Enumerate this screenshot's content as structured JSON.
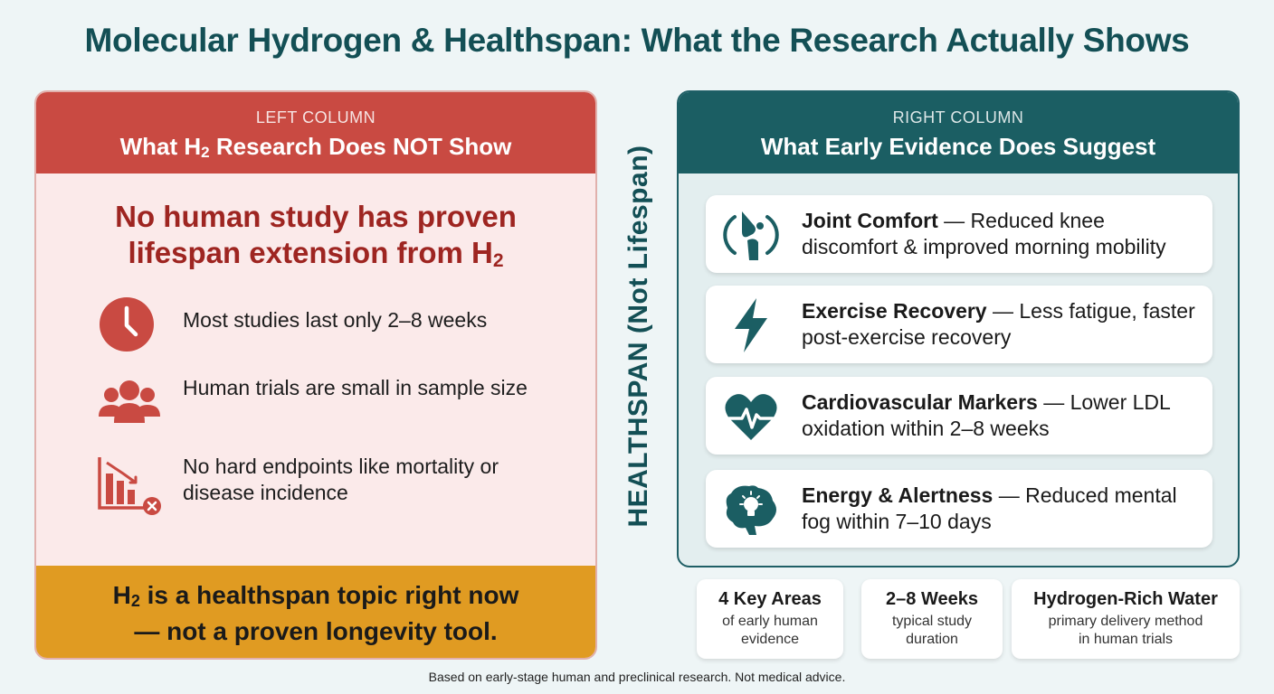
{
  "title": "Molecular Hydrogen & Healthspan: What the Research Actually Shows",
  "left": {
    "label": "LEFT COLUMN",
    "title_pre": "What H",
    "title_sub": "2",
    "title_post": " Research Does NOT Show",
    "headline_line1": "No human study has proven",
    "headline_line2_pre": "lifespan extension from H",
    "headline_line2_sub": "2",
    "items": [
      {
        "icon": "clock-icon",
        "text": "Most studies last only 2–8 weeks"
      },
      {
        "icon": "people-group-icon",
        "text": "Human trials are small in sample size"
      },
      {
        "icon": "declining-chart-x-icon",
        "text": "No hard endpoints like mortality or disease incidence"
      }
    ],
    "footer_line1_pre": "H",
    "footer_line1_sub": "2",
    "footer_line1_post": " is a healthspan topic right now",
    "footer_line2": "— not a proven longevity tool."
  },
  "vertical_label": "HEALTHSPAN (Not Lifespan)",
  "right": {
    "label": "RIGHT COLUMN",
    "title": "What Early Evidence Does Suggest",
    "cards": [
      {
        "icon": "knee-joint-icon",
        "bold": "Joint Comfort",
        "rest": " — Reduced knee discomfort & improved morning mobility"
      },
      {
        "icon": "lightning-bolt-icon",
        "bold": "Exercise Recovery",
        "rest": " — Less fatigue, faster post-exercise recovery"
      },
      {
        "icon": "heart-pulse-icon",
        "bold": "Cardiovascular Markers",
        "rest": " — Lower LDL oxidation within 2–8 weeks"
      },
      {
        "icon": "brain-lightbulb-icon",
        "bold": "Energy & Alertness",
        "rest": " — Reduced mental fog within 7–10 days"
      }
    ]
  },
  "stats": [
    {
      "big": "4 Key Areas",
      "small1": "of early human",
      "small2": "evidence"
    },
    {
      "big": "2–8 Weeks",
      "small1": "typical study",
      "small2": "duration"
    },
    {
      "big": "Hydrogen-Rich Water",
      "small1": "primary delivery method",
      "small2": "in human trials"
    }
  ],
  "footnote": "Based on early-stage human and preclinical research. Not medical advice.",
  "colors": {
    "red": "#c94a42",
    "teal": "#1b5e63",
    "amber": "#e09b22"
  }
}
